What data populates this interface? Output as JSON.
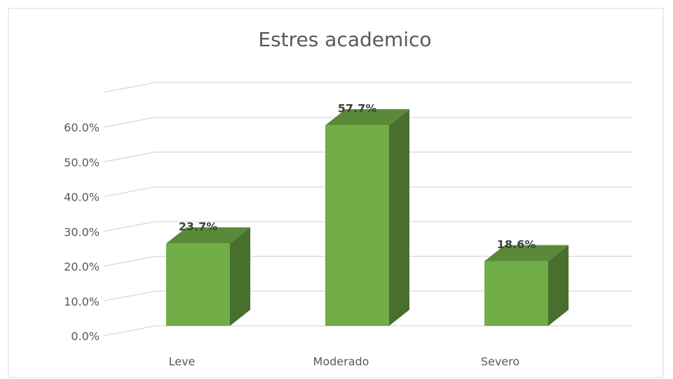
{
  "chart_data": {
    "type": "bar3d",
    "title": "Estres academico",
    "categories": [
      "Leve",
      "Moderado",
      "Severo"
    ],
    "values": [
      23.7,
      57.7,
      18.6
    ],
    "value_labels": [
      "23.7%",
      "57.7%",
      "18.6%"
    ],
    "color": "#70ad47",
    "ylim": [
      0,
      70
    ],
    "yticks": [
      {
        "value": 0,
        "label": "0.0%"
      },
      {
        "value": 10,
        "label": "10.0%"
      },
      {
        "value": 20,
        "label": "20.0%"
      },
      {
        "value": 30,
        "label": "30.0%"
      },
      {
        "value": 40,
        "label": "40.0%"
      },
      {
        "value": 50,
        "label": "50.0%"
      },
      {
        "value": 60,
        "label": "60.0%"
      }
    ],
    "grid": true
  }
}
